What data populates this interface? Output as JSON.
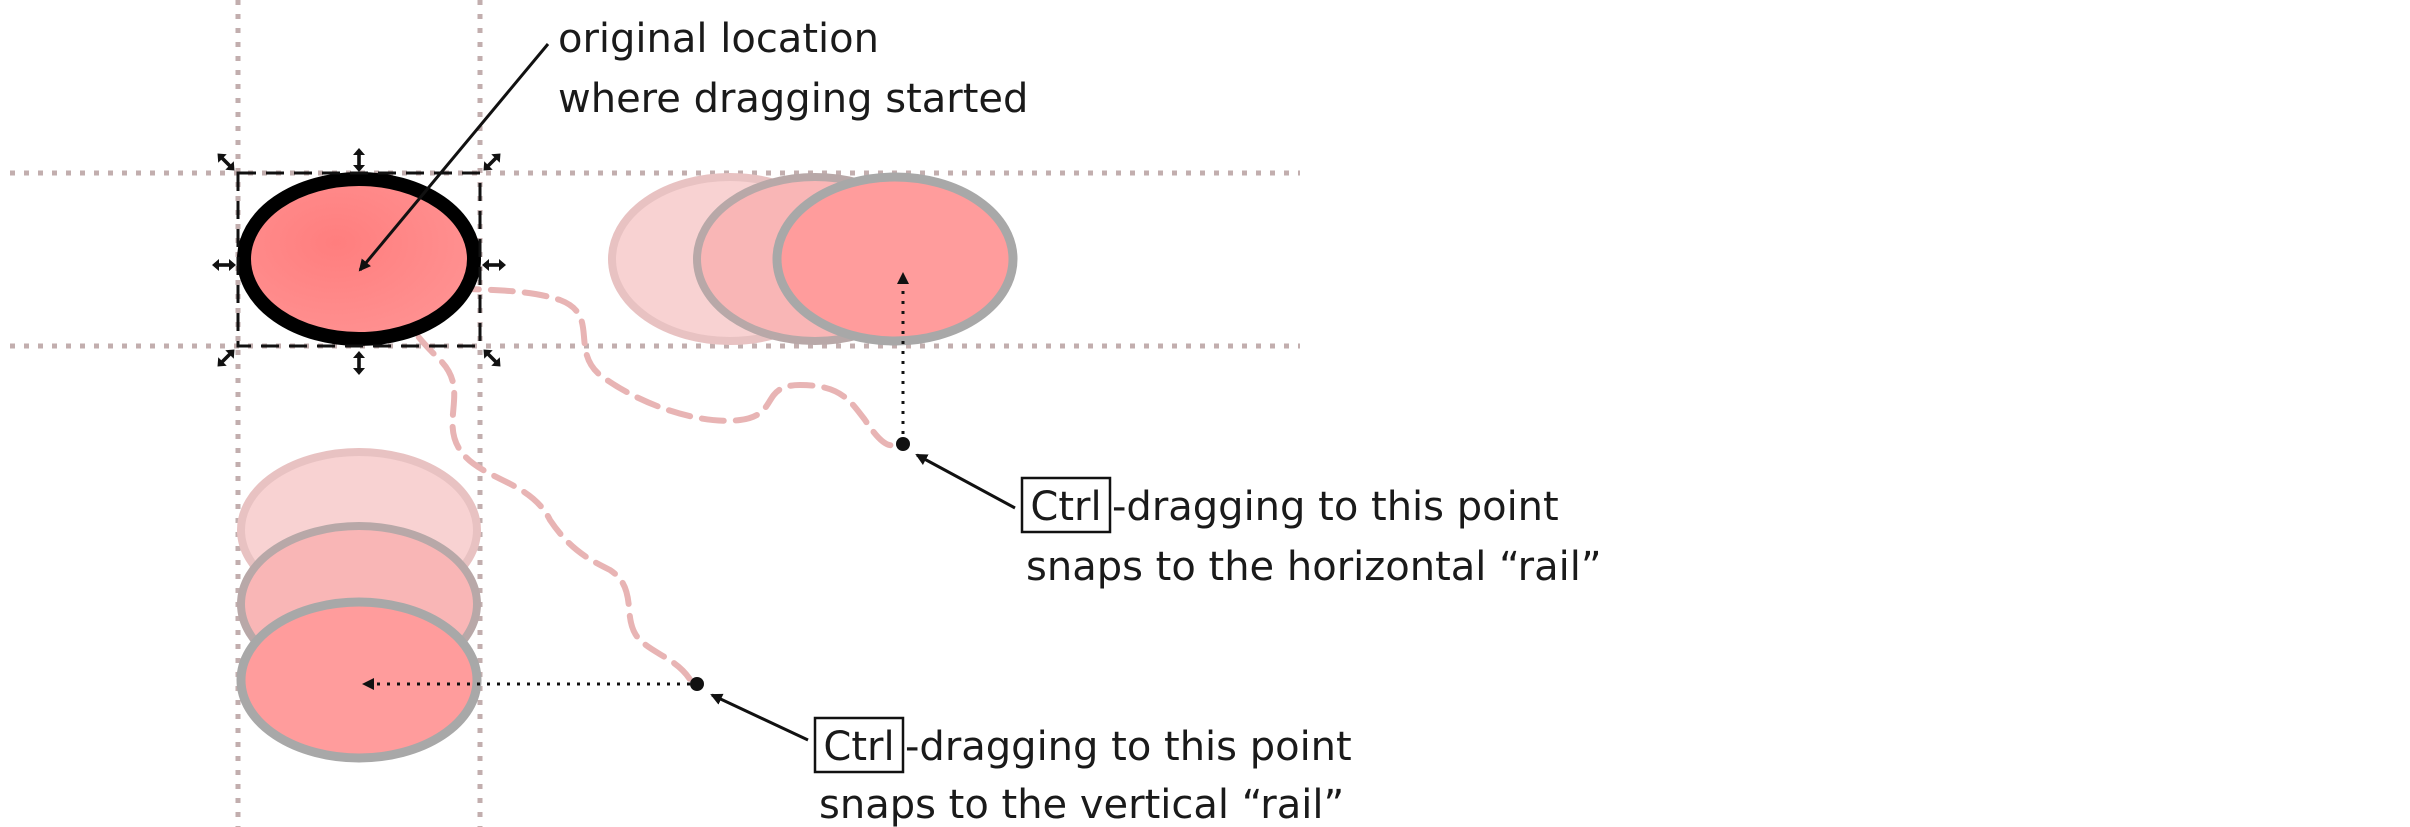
{
  "annotations": {
    "origin": {
      "line1": "original location",
      "line2": "where dragging started"
    },
    "horizontal": {
      "key": "Ctrl",
      "line1_rest": "-dragging to this point",
      "line2": "snaps to the horizontal “rail”"
    },
    "vertical": {
      "key": "Ctrl",
      "line1_rest": "-dragging to this point",
      "line2": "snaps to the vertical “rail”"
    }
  },
  "colors": {
    "guide": "#c2aeae",
    "ellipse_fill": "#ff8a8a",
    "ghost_light": "#f8d2d2",
    "ghost_mid": "#f9b2b2",
    "ghost_strong": "#ff9c9c",
    "ghost_stroke_light": "#e8c2c2",
    "ghost_stroke": "#aaaaaa",
    "path_dash": "#e8b4b4",
    "ink": "#111111"
  },
  "icons": [
    "resize-arrow-icon",
    "drag-handle-dot-icon"
  ]
}
